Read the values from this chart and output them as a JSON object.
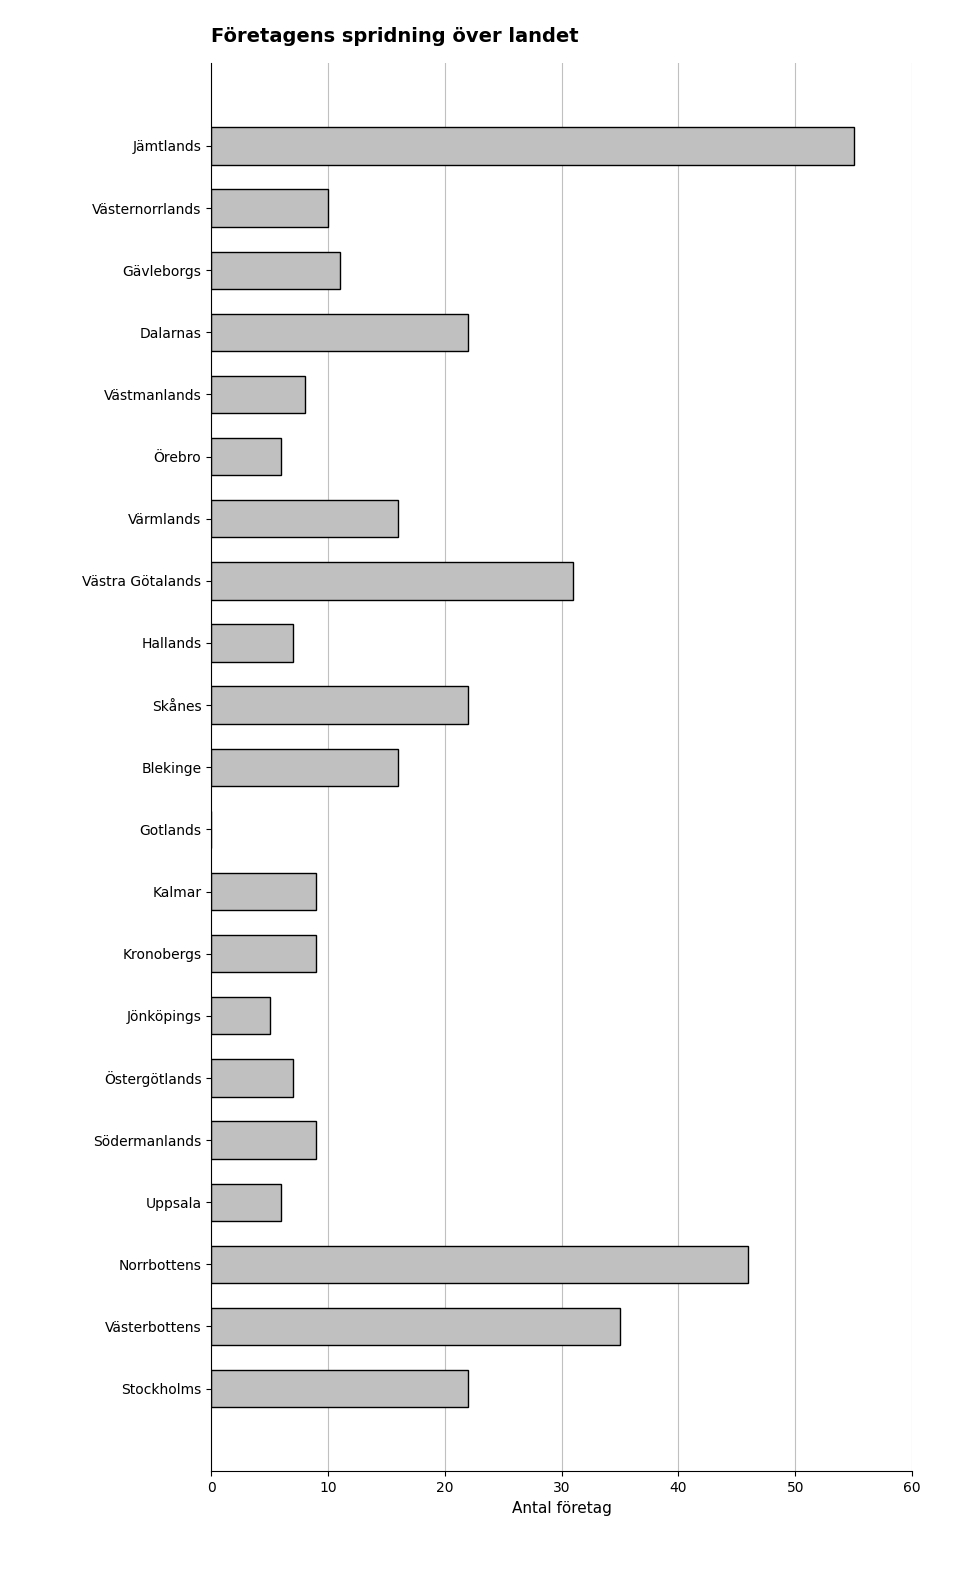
{
  "title": "Företagens spridning över landet",
  "categories": [
    "Jämtlands",
    "Västernorrlands",
    "Gävleborgs",
    "Dalarnas",
    "Västmanlands",
    "Örebro",
    "Värmlands",
    "Västra Götalands",
    "Hallands",
    "Skånes",
    "Blekinge",
    "Gotlands",
    "Kalmar",
    "Kronobergs",
    "Jönköpings",
    "Östergötlands",
    "Södermanlands",
    "Uppsala",
    "Norrbottens",
    "Västerbottens",
    "Stockholms"
  ],
  "values": [
    55,
    10,
    11,
    22,
    8,
    6,
    16,
    31,
    7,
    22,
    16,
    0,
    9,
    9,
    5,
    7,
    9,
    6,
    46,
    35,
    22
  ],
  "bar_color": "#c0c0c0",
  "bar_edgecolor": "#000000",
  "xlabel": "Antal företag",
  "xlim": [
    0,
    60
  ],
  "xticks": [
    0,
    10,
    20,
    30,
    40,
    50,
    60
  ],
  "background_color": "#ffffff",
  "grid_color": "#c0c0c0",
  "title_fontsize": 14,
  "axis_fontsize": 11,
  "tick_fontsize": 10
}
